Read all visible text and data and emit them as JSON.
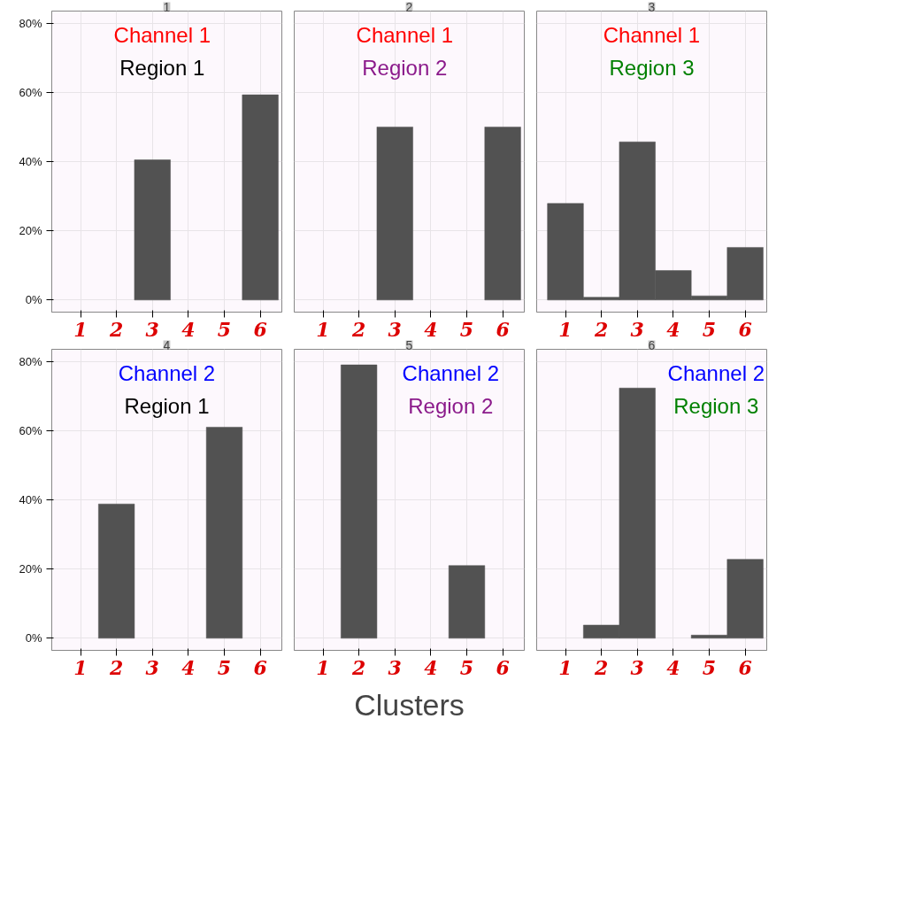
{
  "chart_data": [
    {
      "type": "bar",
      "title": "1",
      "x": [
        3,
        6
      ],
      "values": [
        40.5,
        59.3
      ],
      "color": "#525252",
      "xlim": [
        0.2,
        6.6
      ],
      "ylim": [
        -3.5,
        83.5
      ],
      "xticks": [
        1,
        2,
        3,
        4,
        5,
        6
      ],
      "yticks": [
        {
          "value": 0,
          "label": "0%"
        },
        {
          "value": 20,
          "label": "20%"
        },
        {
          "value": 40,
          "label": "40%"
        },
        {
          "value": 60,
          "label": "60%"
        },
        {
          "value": 80,
          "label": "80%"
        }
      ],
      "grid": true,
      "annotations": [
        "Channel 1",
        "Region 1"
      ]
    },
    {
      "type": "bar",
      "title": "2",
      "x": [
        3,
        6
      ],
      "values": [
        50,
        50
      ],
      "color": "#525252",
      "xlim": [
        0.2,
        6.6
      ],
      "ylim": [
        -3.5,
        83.5
      ],
      "xticks": [
        1,
        2,
        3,
        4,
        5,
        6
      ],
      "yticks": [
        0,
        20,
        40,
        60,
        80
      ],
      "grid": true,
      "tick_labels": "x",
      "annotations": [
        "Channel 1",
        "Region 2"
      ]
    },
    {
      "type": "bar",
      "title": "3",
      "x": [
        1,
        2,
        3,
        4,
        5,
        6
      ],
      "values": [
        27.9,
        0.8,
        45.7,
        8.5,
        1.2,
        15.2
      ],
      "color": "#525252",
      "xlim": [
        0.2,
        6.6
      ],
      "ylim": [
        -3.5,
        83.5
      ],
      "xticks": [
        1,
        2,
        3,
        4,
        5,
        6
      ],
      "yticks": [
        0,
        20,
        40,
        60,
        80
      ],
      "grid": true,
      "tick_labels": "x",
      "annotations": [
        "Channel 1",
        "Region 3"
      ]
    },
    {
      "type": "bar",
      "title": "4",
      "x": [
        2,
        5
      ],
      "values": [
        38.8,
        61.0
      ],
      "color": "#525252",
      "xlim": [
        0.2,
        6.6
      ],
      "ylim": [
        -3.5,
        83.5
      ],
      "xticks": [
        1,
        2,
        3,
        4,
        5,
        6
      ],
      "yticks": [
        {
          "value": 0,
          "label": "0%"
        },
        {
          "value": 20,
          "label": "20%"
        },
        {
          "value": 40,
          "label": "40%"
        },
        {
          "value": 60,
          "label": "60%"
        },
        {
          "value": 80,
          "label": "80%"
        }
      ],
      "grid": true,
      "annotations": [
        "Channel 2",
        "Region 1"
      ]
    },
    {
      "type": "bar",
      "title": "5",
      "xlabel": "Clusters",
      "x": [
        2,
        5
      ],
      "values": [
        79.0,
        21.0
      ],
      "color": "#525252",
      "xlim": [
        0.2,
        6.6
      ],
      "ylim": [
        -3.5,
        83.5
      ],
      "xticks": [
        1,
        2,
        3,
        4,
        5,
        6
      ],
      "yticks": [
        0,
        20,
        40,
        60,
        80
      ],
      "grid": true,
      "tick_labels": "x",
      "annotations": [
        "Channel 2",
        "Region 2"
      ]
    },
    {
      "type": "bar",
      "title": "6",
      "x": [
        2,
        3,
        5,
        6
      ],
      "values": [
        3.8,
        72.3,
        0.9,
        22.8
      ],
      "color": "#525252",
      "xlim": [
        0.2,
        6.6
      ],
      "ylim": [
        -3.5,
        83.5
      ],
      "xticks": [
        1,
        2,
        3,
        4,
        5,
        6
      ],
      "yticks": [
        0,
        20,
        40,
        60,
        80
      ],
      "grid": true,
      "tick_labels": "x",
      "annotations": [
        "Channel 2",
        "Region 3"
      ]
    }
  ]
}
